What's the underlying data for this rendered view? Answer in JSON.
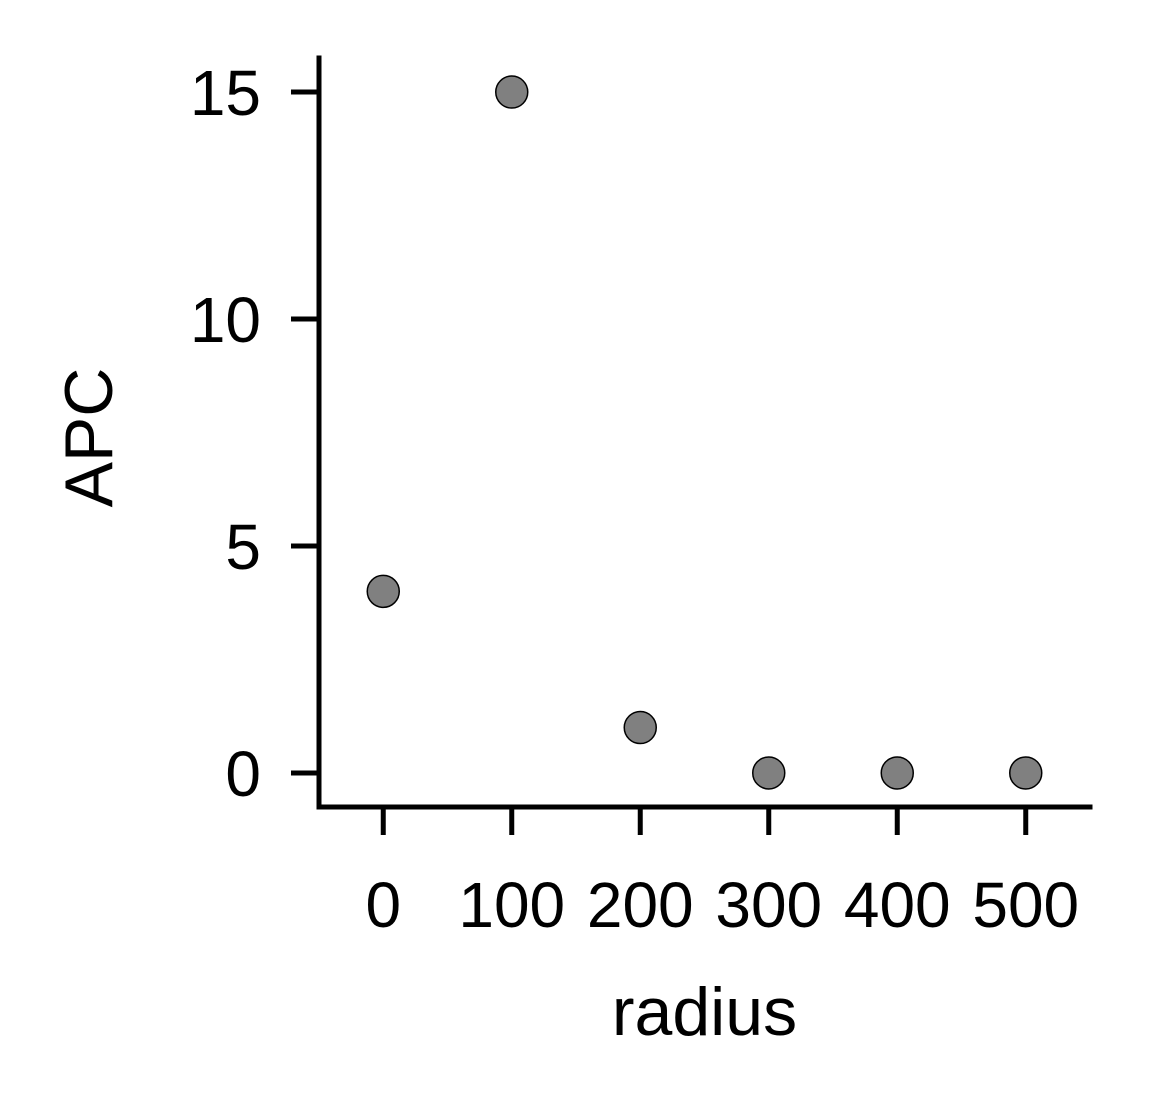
{
  "chart_data": {
    "type": "scatter",
    "title": "",
    "xlabel": "radius",
    "ylabel": "APC",
    "x": [
      0,
      100,
      200,
      300,
      400,
      500
    ],
    "y": [
      4,
      15,
      1,
      0,
      0,
      0
    ],
    "xticks": [
      0,
      100,
      200,
      300,
      400,
      500
    ],
    "xtick_labels": [
      "0",
      "100",
      "200",
      "300",
      "400",
      "500"
    ],
    "yticks": [
      0,
      5,
      10,
      15
    ],
    "ytick_labels": [
      "0",
      "5",
      "10",
      "15"
    ],
    "xlim": [
      -50,
      550
    ],
    "ylim": [
      -0.75,
      15.75
    ],
    "grid": false,
    "legend": false,
    "marker_color": "#808080",
    "marker_edge_color": "#000000",
    "axis_color": "#000000"
  }
}
